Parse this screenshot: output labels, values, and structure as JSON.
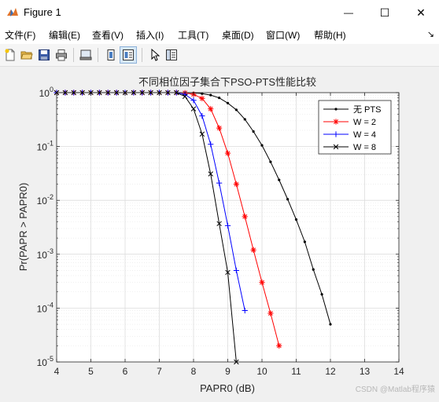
{
  "window": {
    "title": "Figure 1",
    "minimize_glyph": "—",
    "maximize_glyph": "☐",
    "close_glyph": "✕"
  },
  "menu": {
    "items": [
      {
        "label": "文件(F)"
      },
      {
        "label": "编辑(E)"
      },
      {
        "label": "查看(V)"
      },
      {
        "label": "插入(I)"
      },
      {
        "label": "工具(T)"
      },
      {
        "label": "桌面(D)"
      },
      {
        "label": "窗口(W)"
      },
      {
        "label": "帮助(H)"
      }
    ],
    "dock_glyph": "↘"
  },
  "toolbar": {
    "icons": [
      "new-file-icon",
      "open-folder-icon",
      "save-icon",
      "print-icon",
      "link-plot-icon",
      "hide-plot-tools-icon",
      "show-plot-tools-icon",
      "edit-plot-icon",
      "property-inspector-icon"
    ]
  },
  "watermark": "CSDN @Matlab程序猿",
  "chart_data": {
    "type": "line",
    "title": "不同相位因子集合下PSO-PTS性能比较",
    "xlabel": "PAPR0 (dB)",
    "ylabel": "Pr(PAPR > PAPR0)",
    "xlim": [
      4,
      14
    ],
    "ylim": [
      1e-05,
      1
    ],
    "yscale": "log",
    "grid": true,
    "x_ticks": [
      "4",
      "5",
      "6",
      "7",
      "8",
      "9",
      "10",
      "11",
      "12",
      "13",
      "14"
    ],
    "y_ticks": [
      {
        "base": "10",
        "exp": "0"
      },
      {
        "base": "10",
        "exp": "-1"
      },
      {
        "base": "10",
        "exp": "-2"
      },
      {
        "base": "10",
        "exp": "-3"
      },
      {
        "base": "10",
        "exp": "-4"
      },
      {
        "base": "10",
        "exp": "-5"
      }
    ],
    "legend": {
      "position": "top-right"
    },
    "series": [
      {
        "name": "无 PTS",
        "color": "#000000",
        "marker": "dot",
        "x": [
          4,
          4.25,
          4.5,
          4.75,
          5,
          5.25,
          5.5,
          5.75,
          6,
          6.25,
          6.5,
          6.75,
          7,
          7.25,
          7.5,
          7.75,
          8,
          8.25,
          8.5,
          8.75,
          9,
          9.25,
          9.5,
          9.75,
          10,
          10.25,
          10.5,
          10.75,
          11,
          11.25,
          11.5,
          11.75,
          12
        ],
        "y": [
          1,
          1,
          1,
          1,
          1,
          1,
          1,
          1,
          1,
          1,
          1,
          1,
          1,
          1,
          1,
          0.998,
          0.99,
          0.96,
          0.9,
          0.8,
          0.64,
          0.48,
          0.32,
          0.19,
          0.105,
          0.052,
          0.024,
          0.0105,
          0.0044,
          0.0017,
          0.00052,
          0.00018,
          5e-05
        ]
      },
      {
        "name": "W = 2",
        "color": "#ff0000",
        "marker": "star",
        "x": [
          4,
          4.25,
          4.5,
          4.75,
          5,
          5.25,
          5.5,
          5.75,
          6,
          6.25,
          6.5,
          6.75,
          7,
          7.25,
          7.5,
          7.75,
          8,
          8.25,
          8.5,
          8.75,
          9,
          9.25,
          9.5,
          9.75,
          10,
          10.25,
          10.5
        ],
        "y": [
          1,
          1,
          1,
          1,
          1,
          1,
          1,
          1,
          1,
          1,
          1,
          1,
          1,
          1,
          1,
          0.99,
          0.93,
          0.78,
          0.5,
          0.22,
          0.075,
          0.02,
          0.005,
          0.0012,
          0.0003,
          8e-05,
          2e-05
        ]
      },
      {
        "name": "W = 4",
        "color": "#0000ff",
        "marker": "plus",
        "x": [
          4,
          4.25,
          4.5,
          4.75,
          5,
          5.25,
          5.5,
          5.75,
          6,
          6.25,
          6.5,
          6.75,
          7,
          7.25,
          7.5,
          7.75,
          8,
          8.25,
          8.5,
          8.75,
          9,
          9.25,
          9.5
        ],
        "y": [
          1,
          1,
          1,
          1,
          1,
          1,
          1,
          1,
          1,
          1,
          1,
          1,
          1,
          1,
          1,
          0.93,
          0.72,
          0.37,
          0.11,
          0.021,
          0.0034,
          0.0005,
          9e-05
        ]
      },
      {
        "name": "W = 8",
        "color": "#000000",
        "marker": "cross",
        "x": [
          4,
          4.25,
          4.5,
          4.75,
          5,
          5.25,
          5.5,
          5.75,
          6,
          6.25,
          6.5,
          6.75,
          7,
          7.25,
          7.5,
          7.75,
          8,
          8.25,
          8.5,
          8.75,
          9,
          9.25
        ],
        "y": [
          1,
          1,
          1,
          1,
          1,
          1,
          1,
          1,
          1,
          1,
          1,
          1,
          1,
          1,
          1,
          0.85,
          0.5,
          0.17,
          0.031,
          0.0037,
          0.00046,
          1e-05
        ]
      }
    ]
  }
}
